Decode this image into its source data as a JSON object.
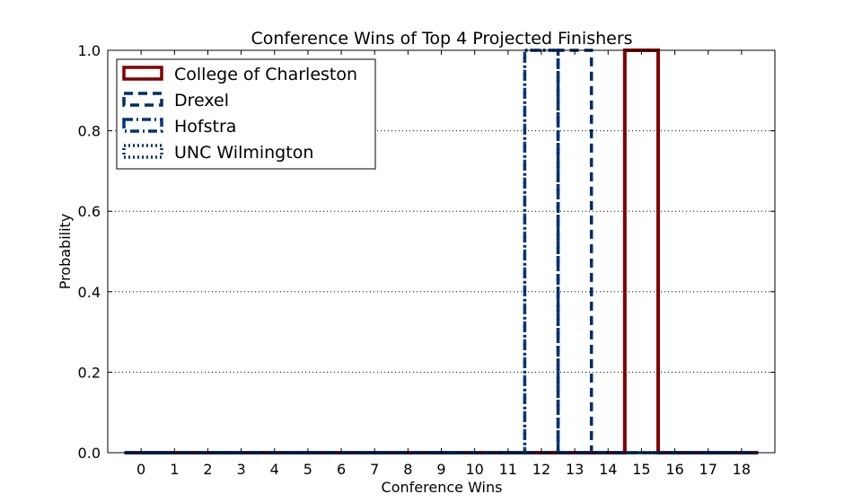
{
  "chart_data": {
    "type": "step-histogram",
    "title": "Conference Wins of Top 4 Projected Finishers",
    "xlabel": "Conference Wins",
    "ylabel": "Probability",
    "x_ticks": [
      0,
      1,
      2,
      3,
      4,
      5,
      6,
      7,
      8,
      9,
      10,
      11,
      12,
      13,
      14,
      15,
      16,
      17,
      18
    ],
    "x_tick_labels": [
      "0",
      "1",
      "2",
      "3",
      "4",
      "5",
      "6",
      "7",
      "8",
      "9",
      "10",
      "11",
      "12",
      "13",
      "14",
      "15",
      "16",
      "17",
      "18"
    ],
    "y_ticks": [
      0.0,
      0.2,
      0.4,
      0.6,
      0.8,
      1.0
    ],
    "y_tick_labels": [
      "0.0",
      "0.2",
      "0.4",
      "0.6",
      "0.8",
      "1.0"
    ],
    "xlim": [
      -1,
      19
    ],
    "ylim": [
      0,
      1
    ],
    "grid": "horizontal-dotted",
    "legend_position": "top-left",
    "series": [
      {
        "name": "College of Charleston",
        "color": "#800000",
        "linestyle": "solid",
        "x": [
          0,
          1,
          2,
          3,
          4,
          5,
          6,
          7,
          8,
          9,
          10,
          11,
          12,
          13,
          14,
          15,
          16,
          17,
          18
        ],
        "values": [
          0,
          0,
          0,
          0,
          0,
          0,
          0,
          0,
          0,
          0,
          0,
          0,
          0,
          0,
          0,
          1.0,
          0,
          0,
          0
        ]
      },
      {
        "name": "Drexel",
        "color": "#002d62",
        "linestyle": "dashed",
        "x": [
          0,
          1,
          2,
          3,
          4,
          5,
          6,
          7,
          8,
          9,
          10,
          11,
          12,
          13,
          14,
          15,
          16,
          17,
          18
        ],
        "values": [
          0,
          0,
          0,
          0,
          0,
          0,
          0,
          0,
          0,
          0,
          0,
          0,
          0,
          1.0,
          0,
          0,
          0,
          0,
          0
        ]
      },
      {
        "name": "Hofstra",
        "color": "#00337f",
        "linestyle": "dashdot",
        "x": [
          0,
          1,
          2,
          3,
          4,
          5,
          6,
          7,
          8,
          9,
          10,
          11,
          12,
          13,
          14,
          15,
          16,
          17,
          18
        ],
        "values": [
          0,
          0,
          0,
          0,
          0,
          0,
          0,
          0,
          0,
          0,
          0,
          0,
          1.0,
          0,
          0,
          0,
          0,
          0,
          0
        ]
      },
      {
        "name": "UNC Wilmington",
        "color": "#003366",
        "linestyle": "dotted",
        "x": [
          0,
          1,
          2,
          3,
          4,
          5,
          6,
          7,
          8,
          9,
          10,
          11,
          12,
          13,
          14,
          15,
          16,
          17,
          18
        ],
        "values": [
          0,
          0,
          0,
          0,
          0,
          0,
          0,
          0,
          0,
          0,
          0,
          0,
          1.0,
          0,
          0,
          0,
          0,
          0,
          0
        ]
      }
    ]
  }
}
